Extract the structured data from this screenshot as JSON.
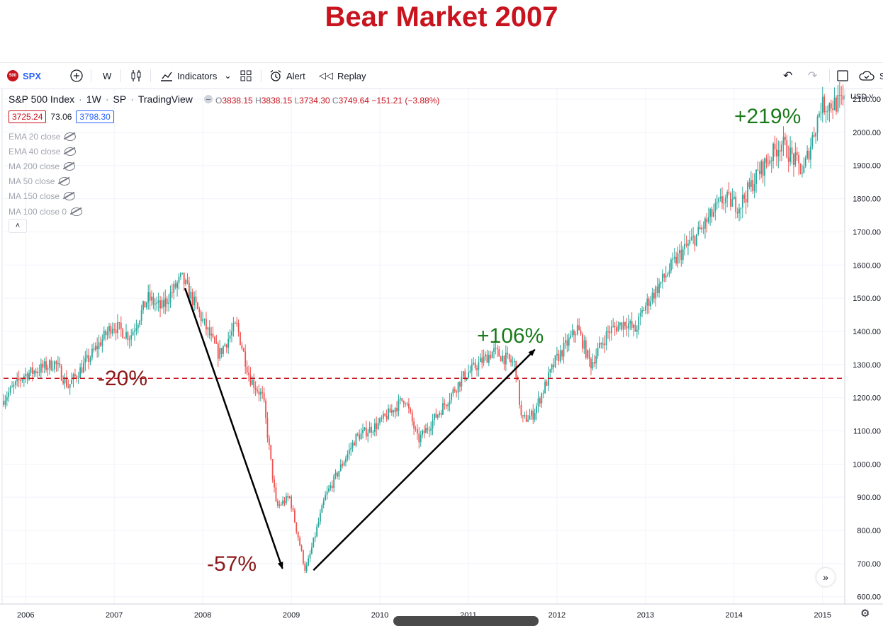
{
  "title": "Bear Market 2007",
  "toolbar": {
    "logo_text": "500",
    "symbol": "SPX",
    "interval": "W",
    "indicators_label": "Indicators",
    "alert_label": "Alert",
    "replay_label": "Replay",
    "cut_label": "S"
  },
  "legend": {
    "name": "S&P 500 Index",
    "interval": "1W",
    "exchange": "SP",
    "source": "TradingView",
    "o_label": "O",
    "o": "3838.15",
    "h_label": "H",
    "h": "3838.15",
    "l_label": "L",
    "l": "3734.30",
    "c_label": "C",
    "c": "3749.64",
    "change": "−151.21 (−3.88%)",
    "bid": "3725.24",
    "spread": "73.06",
    "ask": "3798.30"
  },
  "indicators": [
    "EMA 20 close",
    "EMA 40 close",
    "MA 200 close",
    "MA 50 close",
    "MA 150 close",
    "MA 100 close 0"
  ],
  "collapse_glyph": "˄",
  "currency": "USD",
  "goto_glyph": "»",
  "settings_glyph": "⚙",
  "colors": {
    "up": "#26a69a",
    "down": "#ef5350",
    "title": "#c8141e",
    "line": "#c8141e",
    "gain": "#1a7a1a",
    "loss": "#8b1818"
  },
  "chart_data": {
    "type": "candlestick",
    "interval": "1W",
    "y_ticks": [
      600,
      700,
      800,
      900,
      1000,
      1100,
      1200,
      1300,
      1400,
      1500,
      1600,
      1700,
      1800,
      1900,
      2000,
      2100
    ],
    "y_tick_labels": [
      "600.00",
      "700.00",
      "800.00",
      "900.00",
      "1000.00",
      "1100.00",
      "1200.00",
      "1300.00",
      "1400.00",
      "1500.00",
      "1600.00",
      "1700.00",
      "1800.00",
      "1900.00",
      "2000.00",
      "2100.00"
    ],
    "ylim": [
      578,
      2130
    ],
    "x_ticks": [
      "2006",
      "2007",
      "2008",
      "2009",
      "2010",
      "2011",
      "2012",
      "2013",
      "2014",
      "2015"
    ],
    "xlim_years": [
      2005.75,
      2015.25
    ],
    "price_path": [
      [
        2005.75,
        1190
      ],
      [
        2006.0,
        1268
      ],
      [
        2006.35,
        1305
      ],
      [
        2006.5,
        1235
      ],
      [
        2006.75,
        1325
      ],
      [
        2007.0,
        1420
      ],
      [
        2007.2,
        1385
      ],
      [
        2007.4,
        1500
      ],
      [
        2007.55,
        1470
      ],
      [
        2007.78,
        1562
      ],
      [
        2007.95,
        1470
      ],
      [
        2008.2,
        1330
      ],
      [
        2008.4,
        1420
      ],
      [
        2008.55,
        1260
      ],
      [
        2008.7,
        1200
      ],
      [
        2008.85,
        870
      ],
      [
        2009.0,
        900
      ],
      [
        2009.18,
        676
      ],
      [
        2009.4,
        900
      ],
      [
        2009.75,
        1080
      ],
      [
        2010.0,
        1120
      ],
      [
        2010.3,
        1200
      ],
      [
        2010.45,
        1070
      ],
      [
        2010.75,
        1180
      ],
      [
        2010.95,
        1260
      ],
      [
        2011.3,
        1340
      ],
      [
        2011.55,
        1300
      ],
      [
        2011.62,
        1130
      ],
      [
        2011.75,
        1150
      ],
      [
        2012.0,
        1310
      ],
      [
        2012.25,
        1410
      ],
      [
        2012.4,
        1300
      ],
      [
        2012.6,
        1400
      ],
      [
        2012.8,
        1430
      ],
      [
        2012.9,
        1400
      ],
      [
        2013.0,
        1470
      ],
      [
        2013.4,
        1630
      ],
      [
        2013.6,
        1690
      ],
      [
        2013.9,
        1800
      ],
      [
        2014.08,
        1780
      ],
      [
        2014.3,
        1880
      ],
      [
        2014.55,
        1970
      ],
      [
        2014.8,
        1880
      ],
      [
        2015.0,
        2080
      ],
      [
        2015.25,
        2090
      ]
    ],
    "reference_line": {
      "value": 1258.49,
      "label": "1258.49"
    },
    "annotations": [
      {
        "text": "-20%",
        "kind": "loss"
      },
      {
        "text": "-57%",
        "kind": "loss"
      },
      {
        "text": "+106%",
        "kind": "gain"
      },
      {
        "text": "+219%",
        "kind": "gain"
      }
    ],
    "arrows": [
      {
        "from": [
          2007.8,
          1530
        ],
        "to": [
          2008.9,
          685
        ]
      },
      {
        "from": [
          2009.25,
          680
        ],
        "to": [
          2011.75,
          1345
        ]
      }
    ]
  }
}
